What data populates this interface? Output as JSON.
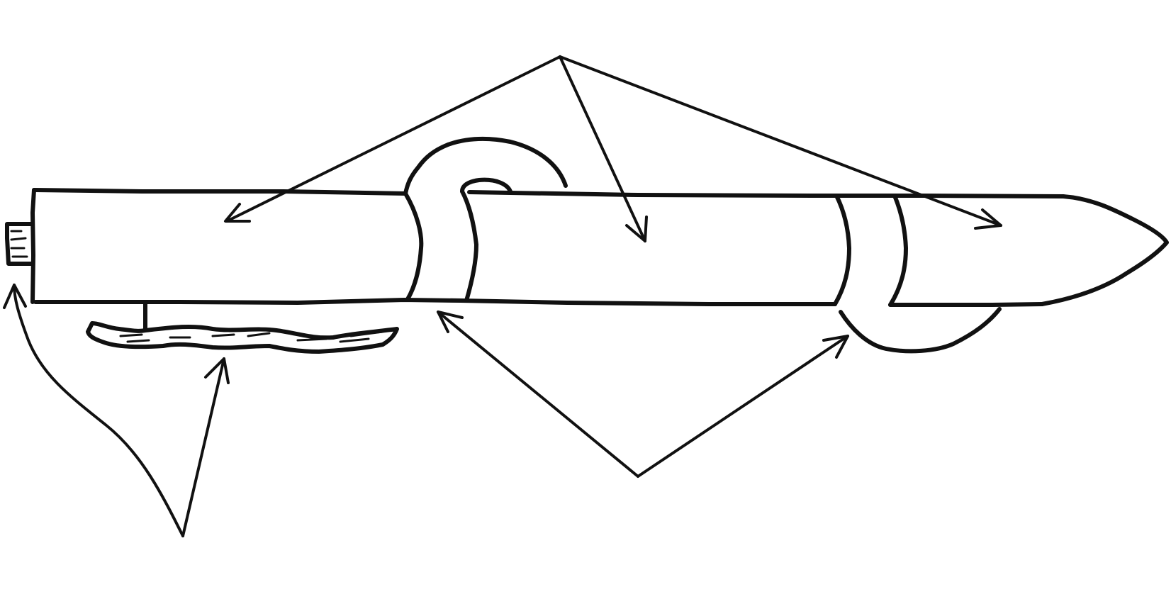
{
  "diagram": {
    "ink_color": "#111111",
    "background": "#ffffff",
    "annotations_text": []
  }
}
